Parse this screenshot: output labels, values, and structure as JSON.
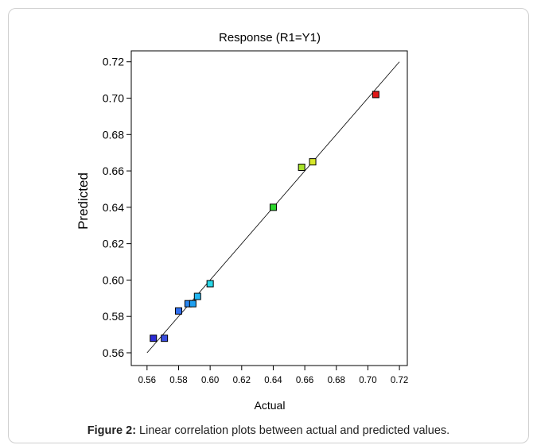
{
  "figure": {
    "caption_label": "Figure 2:",
    "caption_text": " Linear correlation plots between actual and predicted values."
  },
  "chart_data": {
    "type": "scatter",
    "title": "Response (R1=Y1)",
    "xlabel": "Actual",
    "ylabel": "Predicted",
    "xlim": [
      0.55,
      0.725
    ],
    "ylim": [
      0.553,
      0.726
    ],
    "xticks": [
      "0.56",
      "0.58",
      "0.60",
      "0.62",
      "0.64",
      "0.66",
      "0.68",
      "0.70",
      "0.72"
    ],
    "yticks": [
      "0.56",
      "0.58",
      "0.60",
      "0.62",
      "0.64",
      "0.66",
      "0.68",
      "0.70",
      "0.72"
    ],
    "reference_line": {
      "x": [
        0.56,
        0.72
      ],
      "y": [
        0.56,
        0.72
      ]
    },
    "points": [
      {
        "x": 0.564,
        "y": 0.568,
        "color": "#2b2bd6"
      },
      {
        "x": 0.571,
        "y": 0.568,
        "color": "#3a4ee0"
      },
      {
        "x": 0.58,
        "y": 0.583,
        "color": "#2f6ff0"
      },
      {
        "x": 0.586,
        "y": 0.587,
        "color": "#2a86f0"
      },
      {
        "x": 0.589,
        "y": 0.587,
        "color": "#20a0f0"
      },
      {
        "x": 0.592,
        "y": 0.591,
        "color": "#21b6f2"
      },
      {
        "x": 0.6,
        "y": 0.598,
        "color": "#28d8e8"
      },
      {
        "x": 0.64,
        "y": 0.64,
        "color": "#2bd62b"
      },
      {
        "x": 0.658,
        "y": 0.662,
        "color": "#a6e22a"
      },
      {
        "x": 0.665,
        "y": 0.665,
        "color": "#d6e62a"
      },
      {
        "x": 0.705,
        "y": 0.702,
        "color": "#e01818"
      }
    ],
    "grid": false,
    "legend": "none"
  }
}
